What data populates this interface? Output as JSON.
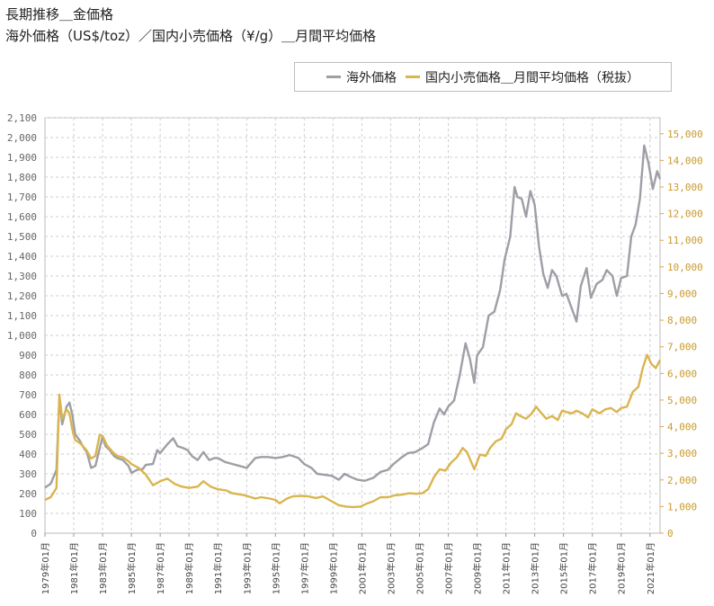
{
  "header": {
    "title": "長期推移＿金価格",
    "subtitle": "海外価格（US$/toz）／国内小売価格（¥/g）＿月間平均価格"
  },
  "chart_data": {
    "type": "line",
    "legend_position": "top-right",
    "grid": true,
    "y_left": {
      "min": 0,
      "max": 2100,
      "ticks": [
        "0",
        "100",
        "200",
        "300",
        "400",
        "500",
        "600",
        "700",
        "800",
        "900",
        "1,000",
        "1,100",
        "1,200",
        "1,300",
        "1,400",
        "1,500",
        "1,600",
        "1,700",
        "1,800",
        "1,900",
        "2,000",
        "2,100"
      ]
    },
    "y_right": {
      "min": 0,
      "max": 15600,
      "ticks": [
        "0",
        "1,000",
        "2,000",
        "3,000",
        "4,000",
        "5,000",
        "6,000",
        "7,000",
        "8,000",
        "9,000",
        "10,000",
        "11,000",
        "12,000",
        "13,000",
        "14,000",
        "15,000"
      ]
    },
    "x_range": [
      1979.0,
      2021.7
    ],
    "x_labels": [
      "1979年01月",
      "1981年01月",
      "1983年01月",
      "1985年01月",
      "1987年01月",
      "1989年01月",
      "1991年01月",
      "1993年01月",
      "1995年01月",
      "1997年01月",
      "1999年01月",
      "2001年01月",
      "2003年01月",
      "2005年01月",
      "2007年01月",
      "2009年01月",
      "2011年01月",
      "2013年01月",
      "2015年01月",
      "2017年01月",
      "2019年01月",
      "2021年01月"
    ],
    "series": [
      {
        "name": "海外価格",
        "color": "#9e9ea6",
        "axis": "left",
        "points": [
          [
            1979.0,
            230
          ],
          [
            1979.4,
            250
          ],
          [
            1979.8,
            320
          ],
          [
            1980.0,
            680
          ],
          [
            1980.2,
            550
          ],
          [
            1980.5,
            640
          ],
          [
            1980.7,
            660
          ],
          [
            1980.9,
            600
          ],
          [
            1981.1,
            500
          ],
          [
            1981.4,
            470
          ],
          [
            1981.7,
            430
          ],
          [
            1981.9,
            410
          ],
          [
            1982.2,
            330
          ],
          [
            1982.5,
            340
          ],
          [
            1982.8,
            430
          ],
          [
            1983.0,
            490
          ],
          [
            1983.2,
            440
          ],
          [
            1983.5,
            420
          ],
          [
            1983.8,
            390
          ],
          [
            1984.0,
            380
          ],
          [
            1984.4,
            370
          ],
          [
            1984.8,
            340
          ],
          [
            1985.0,
            305
          ],
          [
            1985.4,
            320
          ],
          [
            1985.8,
            325
          ],
          [
            1986.0,
            345
          ],
          [
            1986.5,
            350
          ],
          [
            1986.8,
            420
          ],
          [
            1987.0,
            405
          ],
          [
            1987.5,
            450
          ],
          [
            1987.9,
            480
          ],
          [
            1988.2,
            440
          ],
          [
            1988.6,
            430
          ],
          [
            1988.9,
            420
          ],
          [
            1989.2,
            390
          ],
          [
            1989.6,
            370
          ],
          [
            1990.0,
            410
          ],
          [
            1990.4,
            370
          ],
          [
            1990.8,
            380
          ],
          [
            1991.0,
            380
          ],
          [
            1991.5,
            360
          ],
          [
            1992.0,
            350
          ],
          [
            1992.5,
            340
          ],
          [
            1993.0,
            330
          ],
          [
            1993.6,
            380
          ],
          [
            1994.0,
            385
          ],
          [
            1994.5,
            385
          ],
          [
            1995.0,
            380
          ],
          [
            1995.5,
            385
          ],
          [
            1996.0,
            395
          ],
          [
            1996.6,
            380
          ],
          [
            1997.0,
            350
          ],
          [
            1997.5,
            330
          ],
          [
            1997.9,
            300
          ],
          [
            1998.4,
            295
          ],
          [
            1998.9,
            290
          ],
          [
            1999.4,
            270
          ],
          [
            1999.8,
            300
          ],
          [
            2000.2,
            285
          ],
          [
            2000.7,
            270
          ],
          [
            2001.2,
            265
          ],
          [
            2001.8,
            280
          ],
          [
            2002.3,
            310
          ],
          [
            2002.8,
            320
          ],
          [
            2003.2,
            350
          ],
          [
            2003.7,
            380
          ],
          [
            2004.2,
            405
          ],
          [
            2004.7,
            410
          ],
          [
            2005.2,
            430
          ],
          [
            2005.6,
            450
          ],
          [
            2006.0,
            560
          ],
          [
            2006.4,
            630
          ],
          [
            2006.7,
            600
          ],
          [
            2007.0,
            640
          ],
          [
            2007.4,
            670
          ],
          [
            2007.8,
            800
          ],
          [
            2008.2,
            960
          ],
          [
            2008.5,
            880
          ],
          [
            2008.8,
            760
          ],
          [
            2009.0,
            900
          ],
          [
            2009.4,
            940
          ],
          [
            2009.8,
            1100
          ],
          [
            2010.2,
            1120
          ],
          [
            2010.6,
            1230
          ],
          [
            2010.9,
            1380
          ],
          [
            2011.3,
            1500
          ],
          [
            2011.6,
            1750
          ],
          [
            2011.8,
            1700
          ],
          [
            2012.1,
            1690
          ],
          [
            2012.4,
            1600
          ],
          [
            2012.7,
            1730
          ],
          [
            2013.0,
            1660
          ],
          [
            2013.3,
            1450
          ],
          [
            2013.6,
            1310
          ],
          [
            2013.9,
            1240
          ],
          [
            2014.2,
            1330
          ],
          [
            2014.5,
            1300
          ],
          [
            2014.9,
            1200
          ],
          [
            2015.2,
            1210
          ],
          [
            2015.6,
            1130
          ],
          [
            2015.9,
            1070
          ],
          [
            2016.2,
            1250
          ],
          [
            2016.6,
            1340
          ],
          [
            2016.9,
            1190
          ],
          [
            2017.3,
            1260
          ],
          [
            2017.7,
            1280
          ],
          [
            2018.0,
            1330
          ],
          [
            2018.4,
            1300
          ],
          [
            2018.7,
            1200
          ],
          [
            2019.0,
            1290
          ],
          [
            2019.4,
            1300
          ],
          [
            2019.7,
            1500
          ],
          [
            2020.0,
            1560
          ],
          [
            2020.3,
            1690
          ],
          [
            2020.6,
            1960
          ],
          [
            2020.9,
            1870
          ],
          [
            2021.2,
            1740
          ],
          [
            2021.5,
            1830
          ],
          [
            2021.7,
            1790
          ]
        ]
      },
      {
        "name": "国内小売価格＿月間平均価格（税抜）",
        "color": "#dab54e",
        "axis": "right",
        "points": [
          [
            1979.0,
            1250
          ],
          [
            1979.4,
            1350
          ],
          [
            1979.8,
            1700
          ],
          [
            1980.0,
            5200
          ],
          [
            1980.2,
            4300
          ],
          [
            1980.5,
            4650
          ],
          [
            1980.7,
            4500
          ],
          [
            1980.9,
            3900
          ],
          [
            1981.1,
            3500
          ],
          [
            1981.5,
            3350
          ],
          [
            1981.9,
            3100
          ],
          [
            1982.2,
            2800
          ],
          [
            1982.5,
            2900
          ],
          [
            1982.8,
            3700
          ],
          [
            1983.0,
            3650
          ],
          [
            1983.3,
            3300
          ],
          [
            1983.7,
            3050
          ],
          [
            1984.0,
            2900
          ],
          [
            1984.4,
            2850
          ],
          [
            1984.8,
            2700
          ],
          [
            1985.0,
            2600
          ],
          [
            1985.5,
            2450
          ],
          [
            1986.0,
            2200
          ],
          [
            1986.5,
            1800
          ],
          [
            1987.0,
            1950
          ],
          [
            1987.5,
            2050
          ],
          [
            1988.0,
            1850
          ],
          [
            1988.5,
            1750
          ],
          [
            1989.0,
            1700
          ],
          [
            1989.6,
            1750
          ],
          [
            1990.0,
            1950
          ],
          [
            1990.5,
            1750
          ],
          [
            1991.0,
            1650
          ],
          [
            1991.6,
            1600
          ],
          [
            1992.0,
            1500
          ],
          [
            1992.6,
            1450
          ],
          [
            1993.0,
            1400
          ],
          [
            1993.6,
            1300
          ],
          [
            1994.0,
            1350
          ],
          [
            1994.6,
            1300
          ],
          [
            1995.0,
            1250
          ],
          [
            1995.3,
            1120
          ],
          [
            1995.8,
            1300
          ],
          [
            1996.2,
            1380
          ],
          [
            1996.8,
            1400
          ],
          [
            1997.3,
            1380
          ],
          [
            1997.8,
            1320
          ],
          [
            1998.3,
            1380
          ],
          [
            1998.9,
            1200
          ],
          [
            1999.4,
            1050
          ],
          [
            1999.9,
            1000
          ],
          [
            2000.4,
            980
          ],
          [
            2000.9,
            1000
          ],
          [
            2001.3,
            1100
          ],
          [
            2001.8,
            1200
          ],
          [
            2002.3,
            1350
          ],
          [
            2002.8,
            1350
          ],
          [
            2003.3,
            1420
          ],
          [
            2003.8,
            1450
          ],
          [
            2004.3,
            1500
          ],
          [
            2004.8,
            1480
          ],
          [
            2005.2,
            1500
          ],
          [
            2005.6,
            1650
          ],
          [
            2006.0,
            2100
          ],
          [
            2006.4,
            2400
          ],
          [
            2006.8,
            2350
          ],
          [
            2007.2,
            2650
          ],
          [
            2007.6,
            2850
          ],
          [
            2008.0,
            3200
          ],
          [
            2008.3,
            3050
          ],
          [
            2008.8,
            2400
          ],
          [
            2009.2,
            2950
          ],
          [
            2009.6,
            2900
          ],
          [
            2009.9,
            3200
          ],
          [
            2010.3,
            3450
          ],
          [
            2010.7,
            3550
          ],
          [
            2011.0,
            3900
          ],
          [
            2011.4,
            4100
          ],
          [
            2011.7,
            4500
          ],
          [
            2012.0,
            4400
          ],
          [
            2012.4,
            4300
          ],
          [
            2012.8,
            4500
          ],
          [
            2013.1,
            4750
          ],
          [
            2013.4,
            4550
          ],
          [
            2013.8,
            4300
          ],
          [
            2014.2,
            4400
          ],
          [
            2014.6,
            4250
          ],
          [
            2014.9,
            4600
          ],
          [
            2015.2,
            4550
          ],
          [
            2015.6,
            4500
          ],
          [
            2015.9,
            4600
          ],
          [
            2016.3,
            4500
          ],
          [
            2016.7,
            4350
          ],
          [
            2017.0,
            4650
          ],
          [
            2017.5,
            4500
          ],
          [
            2017.9,
            4650
          ],
          [
            2018.3,
            4700
          ],
          [
            2018.7,
            4550
          ],
          [
            2019.0,
            4700
          ],
          [
            2019.4,
            4750
          ],
          [
            2019.8,
            5300
          ],
          [
            2020.2,
            5500
          ],
          [
            2020.5,
            6200
          ],
          [
            2020.8,
            6700
          ],
          [
            2021.1,
            6350
          ],
          [
            2021.4,
            6200
          ],
          [
            2021.7,
            6500
          ]
        ]
      }
    ]
  }
}
